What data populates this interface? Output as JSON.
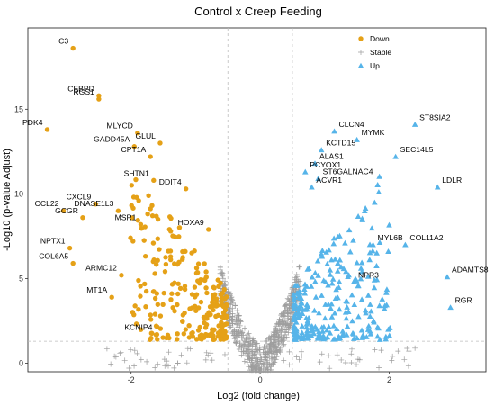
{
  "chart_data": {
    "type": "scatter",
    "title": "Control x Creep Feeding",
    "xlabel": "Log2 (fold change)",
    "ylabel": "-Log10 (p-value Adjust)",
    "xlim": [
      -3.6,
      3.5
    ],
    "ylim": [
      -0.5,
      19.8
    ],
    "x_ticks": [
      -2,
      0,
      2
    ],
    "x_tick_labels": [
      "-2",
      "0",
      "2"
    ],
    "y_ticks": [
      0,
      5,
      10,
      15
    ],
    "y_tick_labels": [
      "0",
      "5",
      "10",
      "15"
    ],
    "thresholds": {
      "fold_change": [
        -0.5,
        0.5
      ],
      "p_adjust": 1.3
    },
    "grid": false,
    "legend_position": "top-right",
    "legend": [
      {
        "name": "Down",
        "color": "#E5A117",
        "marker": "circle"
      },
      {
        "name": "Stable",
        "color": "#9E9E9E",
        "marker": "plus"
      },
      {
        "name": "Up",
        "color": "#56B4E9",
        "marker": "triangle"
      }
    ],
    "labeled_genes": [
      {
        "name": "C3",
        "x": -2.9,
        "y": 18.6,
        "group": "Down"
      },
      {
        "name": "CEBPD",
        "x": -2.5,
        "y": 15.8,
        "group": "Down"
      },
      {
        "name": "RGS1",
        "x": -2.5,
        "y": 15.6,
        "group": "Down"
      },
      {
        "name": "PDK4",
        "x": -3.3,
        "y": 13.8,
        "group": "Down"
      },
      {
        "name": "MLYCD",
        "x": -1.9,
        "y": 13.6,
        "group": "Down"
      },
      {
        "name": "GADD45A",
        "x": -1.95,
        "y": 12.8,
        "group": "Down"
      },
      {
        "name": "GLUL",
        "x": -1.55,
        "y": 13.0,
        "group": "Down"
      },
      {
        "name": "CPT1A",
        "x": -1.7,
        "y": 12.2,
        "group": "Down"
      },
      {
        "name": "SHTN1",
        "x": -1.65,
        "y": 10.8,
        "group": "Down"
      },
      {
        "name": "DDIT4",
        "x": -1.15,
        "y": 10.3,
        "group": "Down"
      },
      {
        "name": "CXCL9",
        "x": -2.55,
        "y": 9.4,
        "group": "Down"
      },
      {
        "name": "CCL22",
        "x": -3.05,
        "y": 9.0,
        "group": "Down"
      },
      {
        "name": "DNASE1L3",
        "x": -2.2,
        "y": 9.0,
        "group": "Down"
      },
      {
        "name": "GCGR",
        "x": -2.75,
        "y": 8.6,
        "group": "Down"
      },
      {
        "name": "MSR1",
        "x": -1.85,
        "y": 8.2,
        "group": "Down"
      },
      {
        "name": "HOXA9",
        "x": -0.8,
        "y": 7.9,
        "group": "Down"
      },
      {
        "name": "NPTX1",
        "x": -2.95,
        "y": 6.8,
        "group": "Down"
      },
      {
        "name": "COL6A5",
        "x": -2.9,
        "y": 5.9,
        "group": "Down"
      },
      {
        "name": "ARMC12",
        "x": -2.15,
        "y": 5.2,
        "group": "Down"
      },
      {
        "name": "MT1A",
        "x": -2.3,
        "y": 3.9,
        "group": "Down"
      },
      {
        "name": "KCNIP4",
        "x": -1.6,
        "y": 1.7,
        "group": "Down"
      },
      {
        "name": "CLCN4",
        "x": 1.15,
        "y": 13.7,
        "group": "Up"
      },
      {
        "name": "MYMK",
        "x": 1.5,
        "y": 13.2,
        "group": "Up"
      },
      {
        "name": "ST8SIA2",
        "x": 2.4,
        "y": 14.1,
        "group": "Up"
      },
      {
        "name": "KCTD15",
        "x": 0.95,
        "y": 12.6,
        "group": "Up"
      },
      {
        "name": "SEC14L5",
        "x": 2.1,
        "y": 12.2,
        "group": "Up"
      },
      {
        "name": "ALAS1",
        "x": 0.85,
        "y": 11.8,
        "group": "Up"
      },
      {
        "name": "PCYOX1",
        "x": 0.7,
        "y": 11.3,
        "group": "Up"
      },
      {
        "name": "ST6GALNAC4",
        "x": 0.9,
        "y": 10.9,
        "group": "Up"
      },
      {
        "name": "ACVR1",
        "x": 0.8,
        "y": 10.4,
        "group": "Up"
      },
      {
        "name": "LDLR",
        "x": 2.75,
        "y": 10.4,
        "group": "Up"
      },
      {
        "name": "MYL6B",
        "x": 1.75,
        "y": 7.0,
        "group": "Up"
      },
      {
        "name": "COL11A2",
        "x": 2.25,
        "y": 7.0,
        "group": "Up"
      },
      {
        "name": "ADAMTS8",
        "x": 2.9,
        "y": 5.1,
        "group": "Up"
      },
      {
        "name": "NPR3",
        "x": 1.45,
        "y": 4.8,
        "group": "Up"
      },
      {
        "name": "RGR",
        "x": 2.95,
        "y": 3.3,
        "group": "Up"
      }
    ]
  }
}
